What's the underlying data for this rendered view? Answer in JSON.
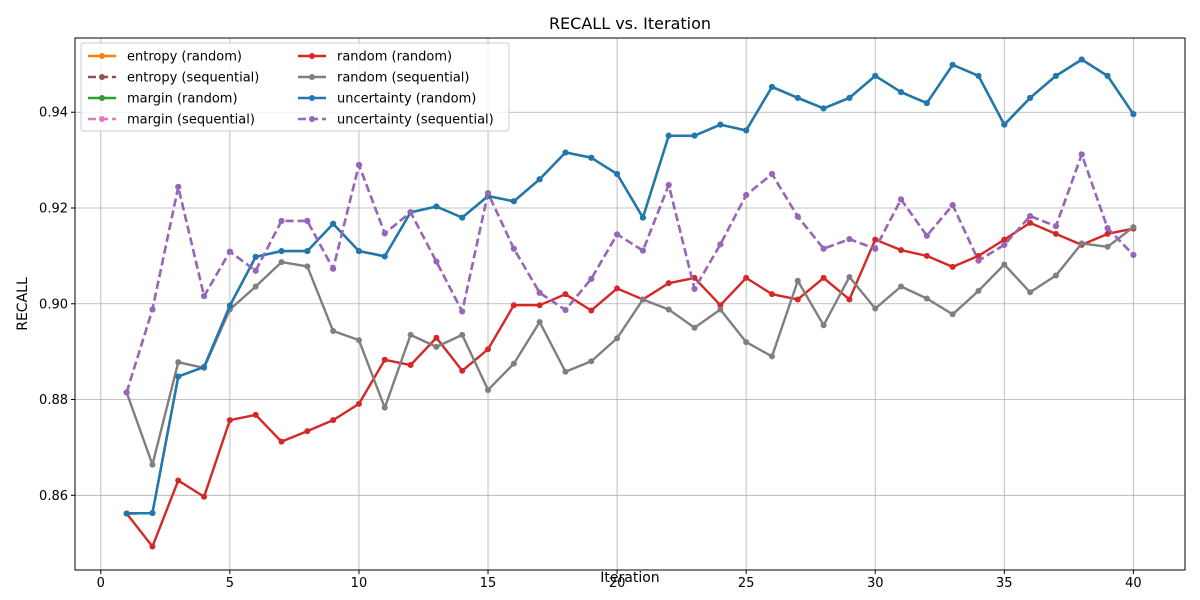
{
  "chart_data": {
    "type": "line",
    "title": "RECALL vs. Iteration",
    "xlabel": "Iteration",
    "ylabel": "RECALL",
    "xlim": [
      -1,
      42
    ],
    "ylim": [
      0.8444,
      0.9555
    ],
    "xticks": [
      0,
      5,
      10,
      15,
      20,
      25,
      30,
      35,
      40
    ],
    "yticks": [
      0.86,
      0.88,
      0.9,
      0.92,
      0.94
    ],
    "ytick_labels": [
      "0.86",
      "0.88",
      "0.90",
      "0.92",
      "0.94"
    ],
    "grid": true,
    "legend": "upper-left",
    "x": [
      1,
      2,
      3,
      4,
      5,
      6,
      7,
      8,
      9,
      10,
      11,
      12,
      13,
      14,
      15,
      16,
      17,
      18,
      19,
      20,
      21,
      22,
      23,
      24,
      25,
      26,
      27,
      28,
      29,
      30,
      31,
      32,
      33,
      34,
      35,
      36,
      37,
      38,
      39,
      40
    ],
    "series": [
      {
        "name": "entropy (random)",
        "color": "#ff7f0e",
        "dash": false,
        "values": [
          0.8562,
          0.8563,
          0.8848,
          0.8868,
          0.8996,
          0.9098,
          0.911,
          0.911,
          0.9167,
          0.911,
          0.9099,
          0.9191,
          0.9203,
          0.918,
          0.9225,
          0.9214,
          0.926,
          0.9316,
          0.9305,
          0.9271,
          0.918,
          0.9351,
          0.9351,
          0.9374,
          0.9362,
          0.9453,
          0.943,
          0.9408,
          0.943,
          0.9476,
          0.9442,
          0.9419,
          0.9499,
          0.9476,
          0.9374,
          0.943,
          0.9476,
          0.951,
          0.9476,
          0.9396
        ]
      },
      {
        "name": "entropy (sequential)",
        "color": "#8c564b",
        "dash": true,
        "values": [
          0.8815,
          0.8988,
          0.9244,
          0.9016,
          0.9109,
          0.9069,
          0.9173,
          0.9173,
          0.9073,
          0.929,
          0.9147,
          0.9191,
          0.9088,
          0.8984,
          0.9231,
          0.9115,
          0.9023,
          0.8987,
          0.9052,
          0.9145,
          0.9111,
          0.9248,
          0.9031,
          0.9124,
          0.9227,
          0.9271,
          0.9182,
          0.9115,
          0.9135,
          0.9115,
          0.9218,
          0.9142,
          0.9206,
          0.909,
          0.9123,
          0.9183,
          0.9162,
          0.9312,
          0.9158,
          0.9102
        ]
      },
      {
        "name": "margin (random)",
        "color": "#2ca02c",
        "dash": false,
        "values": [
          0.8562,
          0.8563,
          0.8848,
          0.8868,
          0.8996,
          0.9098,
          0.911,
          0.911,
          0.9167,
          0.911,
          0.9099,
          0.9191,
          0.9203,
          0.918,
          0.9225,
          0.9214,
          0.926,
          0.9316,
          0.9305,
          0.9271,
          0.918,
          0.9351,
          0.9351,
          0.9374,
          0.9362,
          0.9453,
          0.943,
          0.9408,
          0.943,
          0.9476,
          0.9442,
          0.9419,
          0.9499,
          0.9476,
          0.9374,
          0.943,
          0.9476,
          0.951,
          0.9476,
          0.9396
        ]
      },
      {
        "name": "margin (sequential)",
        "color": "#e377c2",
        "dash": true,
        "values": [
          0.8815,
          0.8988,
          0.9244,
          0.9016,
          0.9109,
          0.9069,
          0.9173,
          0.9173,
          0.9073,
          0.929,
          0.9147,
          0.9191,
          0.9088,
          0.8984,
          0.9231,
          0.9115,
          0.9023,
          0.8987,
          0.9052,
          0.9145,
          0.9111,
          0.9248,
          0.9031,
          0.9124,
          0.9227,
          0.9271,
          0.9182,
          0.9115,
          0.9135,
          0.9115,
          0.9218,
          0.9142,
          0.9206,
          0.909,
          0.9123,
          0.9183,
          0.9162,
          0.9312,
          0.9158,
          0.9102
        ]
      },
      {
        "name": "random (random)",
        "color": "#d62728",
        "dash": false,
        "values": [
          0.8562,
          0.8493,
          0.8631,
          0.8597,
          0.8757,
          0.8768,
          0.8712,
          0.8734,
          0.8757,
          0.8791,
          0.8883,
          0.8872,
          0.8929,
          0.886,
          0.8905,
          0.8997,
          0.8997,
          0.902,
          0.8986,
          0.9032,
          0.9009,
          0.9043,
          0.9054,
          0.8997,
          0.9054,
          0.902,
          0.9009,
          0.9054,
          0.9009,
          0.9134,
          0.9112,
          0.91,
          0.9077,
          0.91,
          0.9134,
          0.9169,
          0.9146,
          0.9123,
          0.9146,
          0.9157
        ]
      },
      {
        "name": "random (sequential)",
        "color": "#7f7f7f",
        "dash": false,
        "values": [
          0.8815,
          0.8664,
          0.8878,
          0.8866,
          0.8988,
          0.9036,
          0.9087,
          0.9078,
          0.8943,
          0.8924,
          0.8783,
          0.8935,
          0.891,
          0.8935,
          0.882,
          0.8875,
          0.8962,
          0.8858,
          0.888,
          0.8928,
          0.9009,
          0.8988,
          0.895,
          0.8988,
          0.892,
          0.889,
          0.9048,
          0.8955,
          0.9056,
          0.899,
          0.9036,
          0.9011,
          0.8978,
          0.9027,
          0.9082,
          0.9024,
          0.9059,
          0.9126,
          0.9119,
          0.916
        ]
      },
      {
        "name": "uncertainty (random)",
        "color": "#1f77b4",
        "dash": false,
        "values": [
          0.8562,
          0.8563,
          0.8848,
          0.8868,
          0.8996,
          0.9098,
          0.911,
          0.911,
          0.9167,
          0.911,
          0.9099,
          0.9191,
          0.9203,
          0.918,
          0.9225,
          0.9214,
          0.926,
          0.9316,
          0.9305,
          0.9271,
          0.918,
          0.9351,
          0.9351,
          0.9374,
          0.9362,
          0.9453,
          0.943,
          0.9408,
          0.943,
          0.9476,
          0.9442,
          0.9419,
          0.9499,
          0.9476,
          0.9374,
          0.943,
          0.9476,
          0.951,
          0.9476,
          0.9396
        ]
      },
      {
        "name": "uncertainty (sequential)",
        "color": "#9467bd",
        "dash": true,
        "values": [
          0.8815,
          0.8988,
          0.9244,
          0.9016,
          0.9109,
          0.9069,
          0.9173,
          0.9173,
          0.9073,
          0.929,
          0.9147,
          0.9191,
          0.9088,
          0.8984,
          0.9231,
          0.9115,
          0.9023,
          0.8987,
          0.9052,
          0.9145,
          0.9111,
          0.9248,
          0.9031,
          0.9124,
          0.9227,
          0.9271,
          0.9182,
          0.9115,
          0.9135,
          0.9115,
          0.9218,
          0.9142,
          0.9206,
          0.909,
          0.9123,
          0.9183,
          0.9162,
          0.9312,
          0.9158,
          0.9102
        ]
      }
    ]
  }
}
